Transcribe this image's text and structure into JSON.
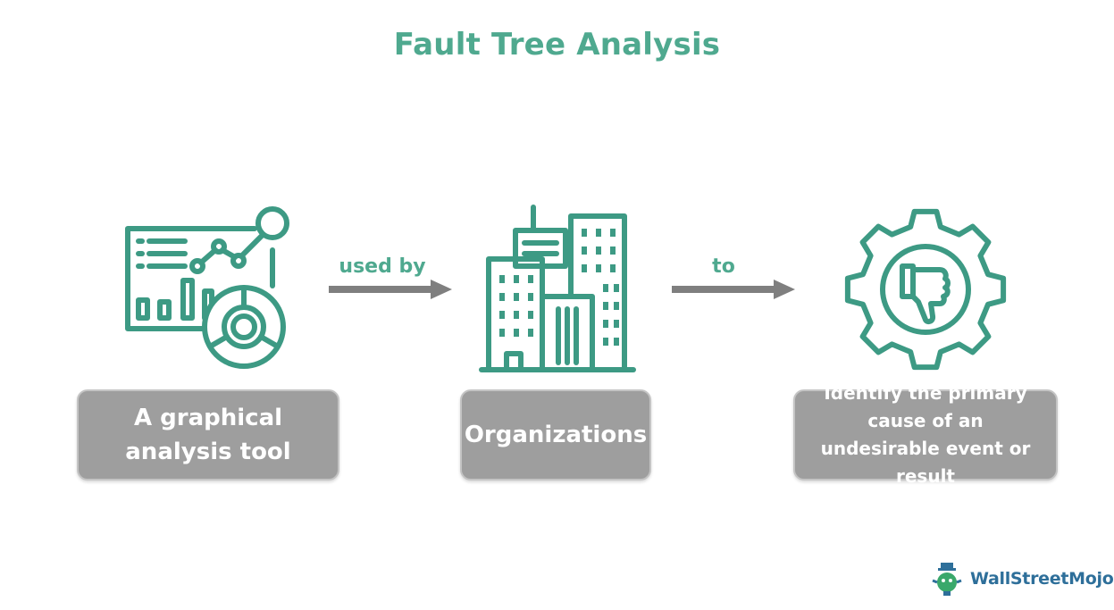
{
  "title": "Fault Tree Analysis",
  "colors": {
    "accent": "#4fa98f",
    "box_fill": "#9e9e9e",
    "arrow": "#7f7f7f"
  },
  "steps": [
    {
      "icon": "analytics-dashboard-icon",
      "label": "A graphical analysis tool"
    },
    {
      "icon": "office-buildings-icon",
      "label": "Organizations"
    },
    {
      "icon": "gear-thumbs-down-icon",
      "label": "Identify the primary cause of an undesirable event or result"
    }
  ],
  "connectors": [
    {
      "label": "used by"
    },
    {
      "label": "to"
    }
  ],
  "brand": {
    "name": "WallStreetMojo",
    "icon": "wallstreetmojo-logo-icon"
  }
}
